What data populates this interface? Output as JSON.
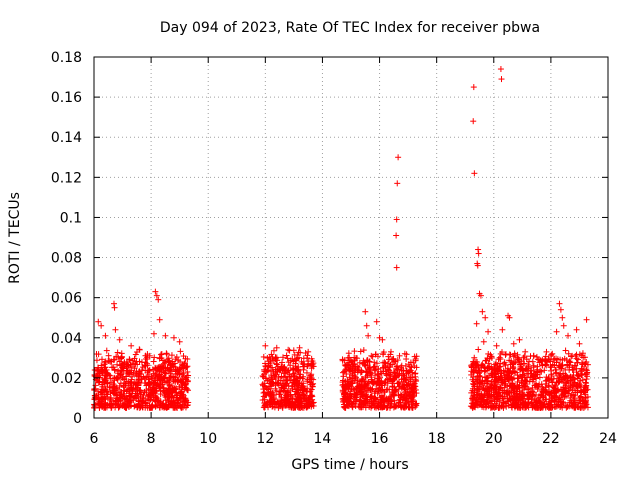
{
  "chart_data": {
    "type": "scatter",
    "title": "Day 094 of 2023, Rate Of TEC Index for receiver pbwa",
    "xlabel": "GPS time / hours",
    "ylabel": "ROTI / TECUs",
    "xlim": [
      6,
      24
    ],
    "ylim": [
      0,
      0.18
    ],
    "xticks": [
      "6",
      "8",
      "10",
      "12",
      "14",
      "16",
      "18",
      "20",
      "22",
      "24"
    ],
    "yticks": [
      "0",
      "0.02",
      "0.04",
      "0.06",
      "0.08",
      "0.1",
      "0.12",
      "0.14",
      "0.16",
      "0.18"
    ],
    "grid": true,
    "marker": "+",
    "color": "#ff0000",
    "series": [
      {
        "name": "ROTI",
        "segments": [
          {
            "x_start": 6.0,
            "x_end": 9.3,
            "base_min": 0.005,
            "base_max": 0.03
          },
          {
            "x_start": 11.9,
            "x_end": 13.7,
            "base_min": 0.005,
            "base_max": 0.03
          },
          {
            "x_start": 14.7,
            "x_end": 17.3,
            "base_min": 0.005,
            "base_max": 0.03
          },
          {
            "x_start": 19.2,
            "x_end": 23.3,
            "base_min": 0.005,
            "base_max": 0.03
          }
        ],
        "points": [
          {
            "x": 6.15,
            "y": 0.048
          },
          {
            "x": 6.25,
            "y": 0.046
          },
          {
            "x": 6.4,
            "y": 0.041
          },
          {
            "x": 6.7,
            "y": 0.057
          },
          {
            "x": 6.72,
            "y": 0.055
          },
          {
            "x": 6.75,
            "y": 0.044
          },
          {
            "x": 6.9,
            "y": 0.039
          },
          {
            "x": 7.3,
            "y": 0.036
          },
          {
            "x": 7.6,
            "y": 0.034
          },
          {
            "x": 8.15,
            "y": 0.063
          },
          {
            "x": 8.2,
            "y": 0.061
          },
          {
            "x": 8.25,
            "y": 0.059
          },
          {
            "x": 8.3,
            "y": 0.049
          },
          {
            "x": 8.1,
            "y": 0.042
          },
          {
            "x": 8.5,
            "y": 0.041
          },
          {
            "x": 8.8,
            "y": 0.04
          },
          {
            "x": 9.0,
            "y": 0.038
          },
          {
            "x": 12.0,
            "y": 0.036
          },
          {
            "x": 12.4,
            "y": 0.035
          },
          {
            "x": 12.8,
            "y": 0.034
          },
          {
            "x": 13.2,
            "y": 0.035
          },
          {
            "x": 13.5,
            "y": 0.033
          },
          {
            "x": 15.5,
            "y": 0.053
          },
          {
            "x": 15.55,
            "y": 0.046
          },
          {
            "x": 15.6,
            "y": 0.041
          },
          {
            "x": 15.9,
            "y": 0.048
          },
          {
            "x": 16.0,
            "y": 0.04
          },
          {
            "x": 16.1,
            "y": 0.039
          },
          {
            "x": 16.4,
            "y": 0.033
          },
          {
            "x": 16.7,
            "y": 0.031
          },
          {
            "x": 16.65,
            "y": 0.13
          },
          {
            "x": 16.62,
            "y": 0.117
          },
          {
            "x": 16.6,
            "y": 0.099
          },
          {
            "x": 16.58,
            "y": 0.091
          },
          {
            "x": 16.6,
            "y": 0.075
          },
          {
            "x": 19.3,
            "y": 0.165
          },
          {
            "x": 19.28,
            "y": 0.148
          },
          {
            "x": 19.32,
            "y": 0.122
          },
          {
            "x": 20.25,
            "y": 0.174
          },
          {
            "x": 20.27,
            "y": 0.169
          },
          {
            "x": 19.45,
            "y": 0.084
          },
          {
            "x": 19.47,
            "y": 0.082
          },
          {
            "x": 19.42,
            "y": 0.077
          },
          {
            "x": 19.44,
            "y": 0.076
          },
          {
            "x": 19.5,
            "y": 0.062
          },
          {
            "x": 19.55,
            "y": 0.061
          },
          {
            "x": 19.6,
            "y": 0.053
          },
          {
            "x": 19.7,
            "y": 0.05
          },
          {
            "x": 19.4,
            "y": 0.047
          },
          {
            "x": 19.8,
            "y": 0.043
          },
          {
            "x": 19.65,
            "y": 0.038
          },
          {
            "x": 20.5,
            "y": 0.051
          },
          {
            "x": 20.55,
            "y": 0.05
          },
          {
            "x": 20.3,
            "y": 0.044
          },
          {
            "x": 20.1,
            "y": 0.036
          },
          {
            "x": 20.7,
            "y": 0.037
          },
          {
            "x": 20.9,
            "y": 0.039
          },
          {
            "x": 21.1,
            "y": 0.033
          },
          {
            "x": 21.4,
            "y": 0.031
          },
          {
            "x": 21.7,
            "y": 0.029
          },
          {
            "x": 22.3,
            "y": 0.057
          },
          {
            "x": 22.35,
            "y": 0.054
          },
          {
            "x": 22.4,
            "y": 0.05
          },
          {
            "x": 22.45,
            "y": 0.046
          },
          {
            "x": 22.2,
            "y": 0.043
          },
          {
            "x": 22.6,
            "y": 0.041
          },
          {
            "x": 22.9,
            "y": 0.044
          },
          {
            "x": 23.0,
            "y": 0.037
          },
          {
            "x": 23.25,
            "y": 0.049
          }
        ]
      }
    ]
  }
}
